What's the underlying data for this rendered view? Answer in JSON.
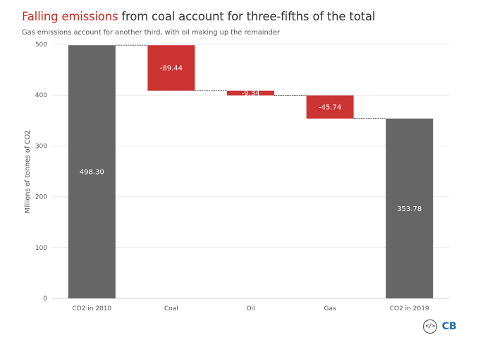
{
  "header": {
    "title_highlight": "Falling emissions",
    "title_rest": " from coal account for three-fifths of the total",
    "subtitle": "Gas emissions account for another third, with oil making up the remainder"
  },
  "icons": {
    "embed": "</>",
    "brand": "CB"
  },
  "colors": {
    "total": "#666666",
    "decrease": "#cc3333",
    "highlight": "#cc2a22",
    "brand": "#2a6fb0"
  },
  "chart_data": {
    "type": "bar",
    "subtype": "waterfall",
    "categories": [
      "CO2 in 2010",
      "Coal",
      "Oil",
      "Gas",
      "CO2 in 2019"
    ],
    "values": [
      498.3,
      -89.44,
      -9.34,
      -45.74,
      353.78
    ],
    "bar_labels": [
      "498.30",
      "-89.44",
      "-9.34",
      "-45.74",
      "353.78"
    ],
    "kinds": [
      "total",
      "decrease",
      "decrease",
      "decrease",
      "total"
    ],
    "ylabel": "Millions of tonnes of CO2",
    "xlabel": "",
    "ylim": [
      0,
      500
    ],
    "yticks": [
      0,
      100,
      200,
      300,
      400,
      500
    ],
    "grid": true,
    "connectors": true
  }
}
